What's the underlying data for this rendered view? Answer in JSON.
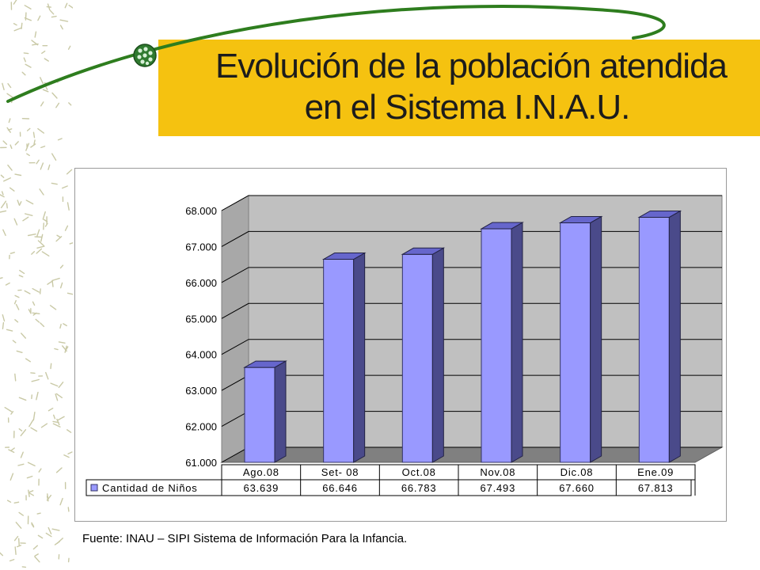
{
  "slide": {
    "title_line1": "Evolución de la población atendida",
    "title_line2": "en el Sistema I.N.A.U.",
    "source": "Fuente: INAU – SIPI  Sistema de Información Para la Infancia."
  },
  "colors": {
    "title_band": "#f5c210",
    "swoosh": "#2e7d1e",
    "bar_front": "#9999ff",
    "bar_side": "#4a4a8a",
    "bar_top": "#6666cc",
    "wall": "#c0c0c0",
    "floor": "#808080"
  },
  "icons": {
    "bullet": "green-bead-ball-icon"
  },
  "chart_data": {
    "type": "bar",
    "title": "",
    "xlabel": "",
    "ylabel": "",
    "categories": [
      "Ago.08",
      "Set- 08",
      "Oct.08",
      "Nov.08",
      "Dic.08",
      "Ene.09"
    ],
    "series": [
      {
        "name": "Cantidad de Niños",
        "values": [
          63639,
          66646,
          66783,
          67493,
          67660,
          67813
        ]
      }
    ],
    "value_labels": [
      "63.639",
      "66.646",
      "66.783",
      "67.493",
      "67.660",
      "67.813"
    ],
    "ylim": [
      61000,
      68000
    ],
    "yticks": [
      61000,
      62000,
      63000,
      64000,
      65000,
      66000,
      67000,
      68000
    ],
    "ytick_labels": [
      "61.000",
      "62.000",
      "63.000",
      "64.000",
      "65.000",
      "66.000",
      "67.000",
      "68.000"
    ],
    "grid": true,
    "style": "3d",
    "legend": "data-table-left"
  }
}
